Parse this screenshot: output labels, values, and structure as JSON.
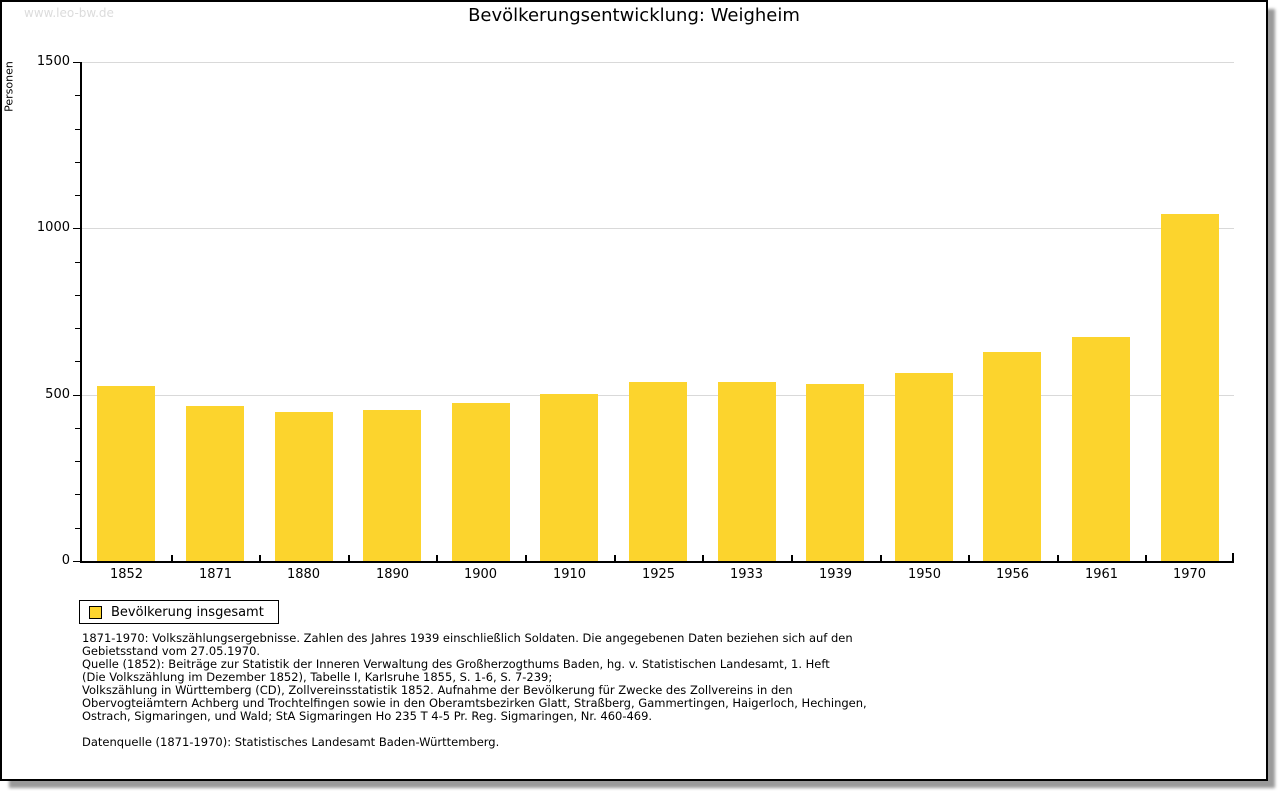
{
  "watermark": "www.leo-bw.de",
  "chart_data": {
    "type": "bar",
    "title": "Bevölkerungsentwicklung: Weigheim",
    "ylabel": "Personen",
    "xlabel": "",
    "legend": "Bevölkerung insgesamt",
    "legend_position": "bottom-left",
    "categories": [
      "1852",
      "1871",
      "1880",
      "1890",
      "1900",
      "1910",
      "1925",
      "1933",
      "1939",
      "1950",
      "1956",
      "1961",
      "1970"
    ],
    "values": [
      527,
      465,
      447,
      455,
      474,
      501,
      537,
      537,
      533,
      564,
      627,
      674,
      1042
    ],
    "ylim": [
      0,
      1500
    ],
    "ytick_major": [
      0,
      500,
      1000,
      1500
    ],
    "ytick_minor_step": 100,
    "grid": "horizontal-major",
    "bar_color": "#fcd42d",
    "grid_color": "#d9d9d9"
  },
  "footnotes": {
    "lines": [
      "1871-1970: Volkszählungsergebnisse. Zahlen des Jahres 1939 einschließlich Soldaten. Die angegebenen Daten beziehen sich auf den",
      "Gebietsstand vom 27.05.1970.",
      "Quelle (1852): Beiträge zur Statistik der Inneren Verwaltung des Großherzogthums Baden, hg. v. Statistischen Landesamt, 1. Heft",
      "(Die Volkszählung im Dezember 1852), Tabelle I, Karlsruhe 1855, S. 1-6, S. 7-239;",
      "Volkszählung in Württemberg (CD), Zollvereinsstatistik 1852. Aufnahme der Bevölkerung für Zwecke des Zollvereins in den",
      "Obervogteiämtern Achberg und Trochtelfingen sowie in den Oberamtsbezirken Glatt, Straßberg, Gammertingen, Haigerloch, Hechingen,",
      "Ostrach, Sigmaringen, und Wald; StA Sigmaringen Ho 235 T 4-5 Pr. Reg. Sigmaringen, Nr. 460-469.",
      "",
      "Datenquelle (1871-1970): Statistisches Landesamt Baden-Württemberg."
    ]
  }
}
